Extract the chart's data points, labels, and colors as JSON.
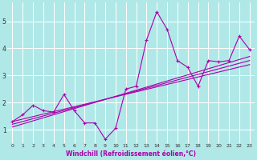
{
  "xlabel": "Windchill (Refroidissement éolien,°C)",
  "bg_color": "#b0e8e8",
  "line_color": "#aa00aa",
  "grid_color": "#ffffff",
  "xlim": [
    -0.5,
    23.5
  ],
  "ylim": [
    0.5,
    5.7
  ],
  "xticks": [
    0,
    1,
    2,
    3,
    4,
    5,
    6,
    7,
    8,
    9,
    10,
    11,
    12,
    13,
    14,
    15,
    16,
    17,
    18,
    19,
    20,
    21,
    22,
    23
  ],
  "yticks": [
    1,
    2,
    3,
    4,
    5
  ],
  "main_line": [
    1.3,
    1.55,
    1.9,
    1.7,
    1.65,
    2.3,
    1.7,
    1.25,
    1.25,
    0.65,
    1.05,
    2.5,
    2.6,
    4.3,
    5.35,
    4.7,
    3.55,
    3.3,
    2.6,
    3.55,
    3.5,
    3.55,
    4.45,
    3.95
  ],
  "trend_lines": [
    {
      "start": 1.1,
      "end": 3.7
    },
    {
      "start": 1.2,
      "end": 3.55
    },
    {
      "start": 1.3,
      "end": 3.4
    }
  ]
}
